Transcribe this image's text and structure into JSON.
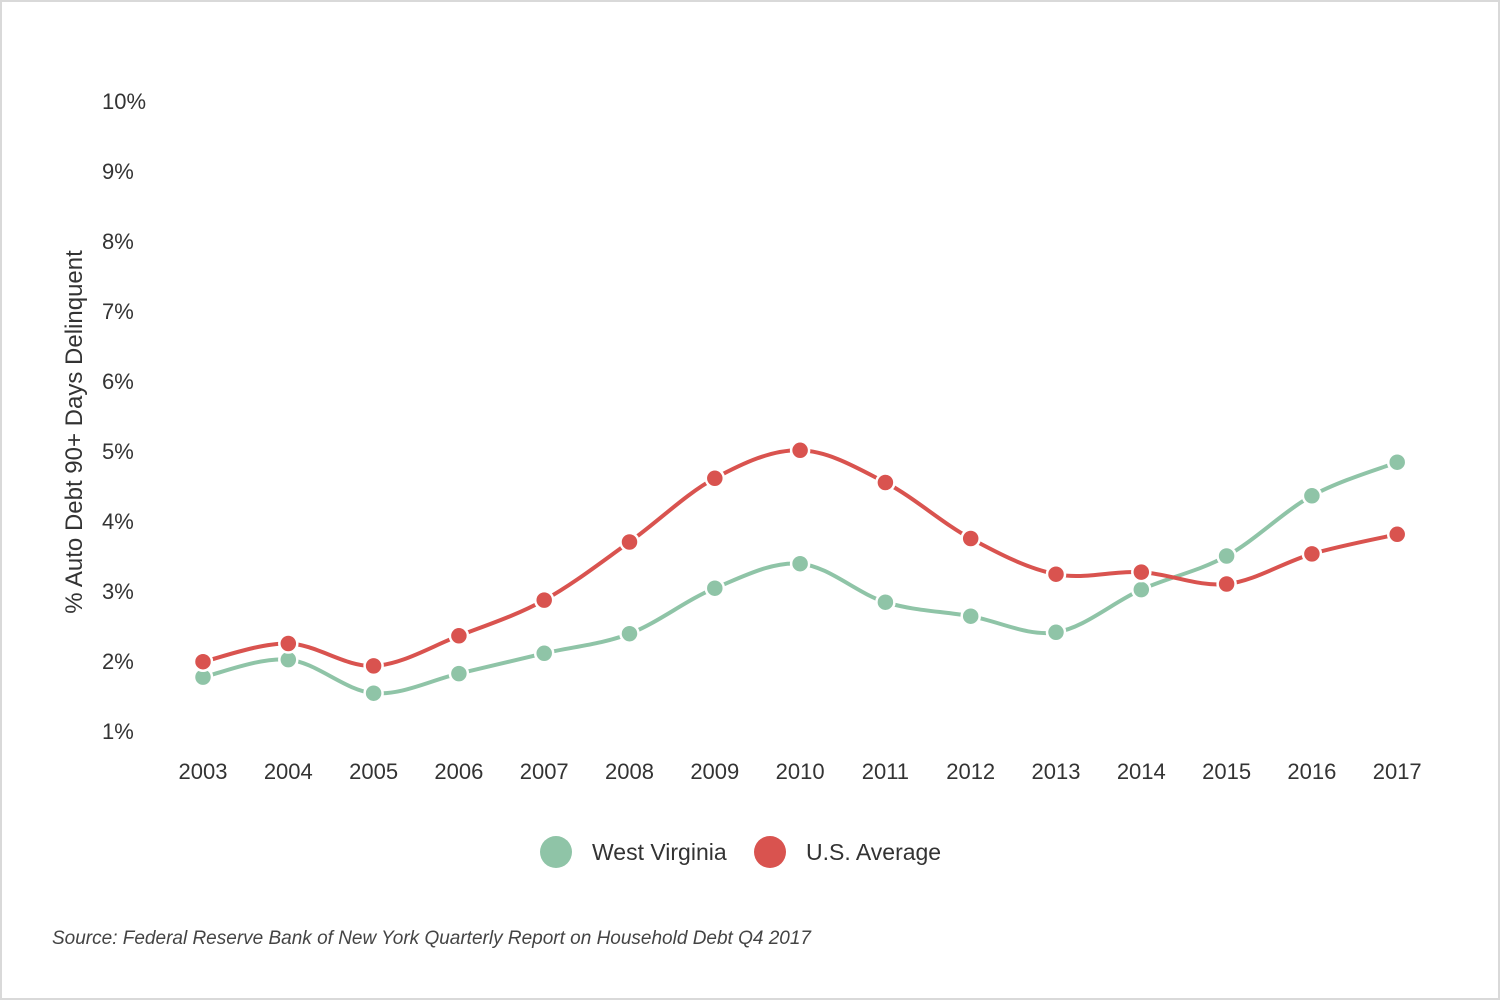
{
  "chart_data": {
    "type": "line",
    "x": [
      "2003",
      "2004",
      "2005",
      "2006",
      "2007",
      "2008",
      "2009",
      "2010",
      "2011",
      "2012",
      "2013",
      "2014",
      "2015",
      "2016",
      "2017"
    ],
    "series": [
      {
        "name": "West Virginia",
        "color": "#8fc4a7",
        "values": [
          1.77,
          2.02,
          1.54,
          1.82,
          2.11,
          2.39,
          3.04,
          3.39,
          2.84,
          2.64,
          2.41,
          3.02,
          3.5,
          4.36,
          4.84
        ]
      },
      {
        "name": "U.S. Average",
        "color": "#d9534f",
        "values": [
          1.99,
          2.25,
          1.93,
          2.36,
          2.87,
          3.7,
          4.61,
          5.01,
          4.55,
          3.75,
          3.24,
          3.27,
          3.1,
          3.53,
          3.81
        ]
      }
    ],
    "yticks": [
      "1%",
      "2%",
      "3%",
      "4%",
      "5%",
      "6%",
      "7%",
      "8%",
      "9%",
      "10%"
    ],
    "ylim": [
      1,
      10
    ],
    "ylabel": "% Auto Debt 90+ Days Delinquent",
    "xlabel": "",
    "grid": false,
    "legend_position": "bottom-center"
  },
  "source": "Source: Federal Reserve Bank of New York Quarterly Report on Household Debt Q4 2017"
}
